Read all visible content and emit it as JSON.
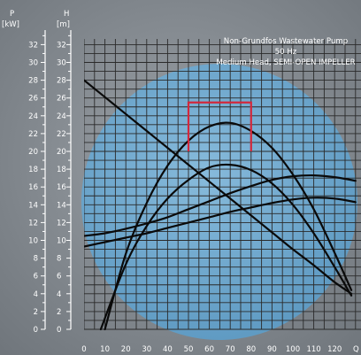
{
  "chart_data": {
    "type": "line",
    "title_lines": [
      "Non-Grundfos Wastewater Pump",
      "50 Hz",
      "Medium Head, SEMI-OPEN IMPELLER"
    ],
    "axes": {
      "p_label": "P",
      "p_unit": "[kW]",
      "h_label": "H",
      "h_unit": "[m]",
      "x_label": "Q",
      "ylim": [
        0,
        33
      ],
      "xlim": [
        0,
        130
      ],
      "y_ticks": [
        "2",
        "4",
        "6",
        "8",
        "10",
        "12",
        "14",
        "16",
        "18",
        "20",
        "22",
        "24",
        "26",
        "28",
        "30",
        "32"
      ],
      "y_zero_p": "0",
      "y_zero_h": "0",
      "x_ticks": [
        "0",
        "10",
        "20",
        "30",
        "40",
        "50",
        "60",
        "70",
        "80",
        "90",
        "100",
        "110",
        "120"
      ],
      "grid": true
    },
    "series": [
      {
        "x": [
          0,
          10,
          20,
          30,
          40,
          50,
          60,
          70,
          80,
          90,
          100,
          110,
          120,
          128
        ],
        "y": [
          28,
          26.1,
          24.2,
          22.3,
          20.4,
          18.5,
          16.6,
          14.7,
          12.8,
          10.9,
          9.0,
          7.2,
          5.3,
          4.0
        ]
      },
      {
        "x": [
          10,
          20,
          30,
          40,
          50,
          60,
          70,
          80,
          90,
          100,
          110,
          120,
          128
        ],
        "y": [
          0,
          8.5,
          14.2,
          18.4,
          21.2,
          22.8,
          23.2,
          22.3,
          20.4,
          17.4,
          13.5,
          8.6,
          4.4
        ]
      },
      {
        "x": [
          8,
          20,
          30,
          40,
          50,
          60,
          70,
          80,
          90,
          100,
          110,
          120,
          128
        ],
        "y": [
          0,
          7.3,
          11.6,
          14.7,
          16.8,
          18.2,
          18.5,
          17.9,
          16.4,
          14.0,
          10.8,
          7.0,
          3.8
        ]
      },
      {
        "x": [
          0,
          10,
          20,
          30,
          40,
          50,
          60,
          70,
          80,
          90,
          100,
          110,
          120,
          130
        ],
        "y": [
          10.5,
          10.8,
          11.3,
          11.9,
          12.6,
          13.5,
          14.4,
          15.3,
          16.1,
          16.8,
          17.2,
          17.3,
          17.1,
          16.7
        ]
      },
      {
        "x": [
          0,
          10,
          20,
          30,
          40,
          50,
          60,
          70,
          80,
          90,
          100,
          110,
          120,
          130
        ],
        "y": [
          9.3,
          9.8,
          10.3,
          10.8,
          11.4,
          12.0,
          12.6,
          13.2,
          13.7,
          14.2,
          14.6,
          14.8,
          14.7,
          14.3
        ]
      }
    ],
    "operating_range": {
      "x_start": 50,
      "x_end": 80,
      "y_top": 25.5,
      "y_bottom": 20,
      "color": "#d2283c"
    },
    "colors": {
      "background": "#8a9096",
      "disc": "#6aa7cf",
      "curve": "#0a0a0a",
      "text": "#ffffff"
    }
  }
}
